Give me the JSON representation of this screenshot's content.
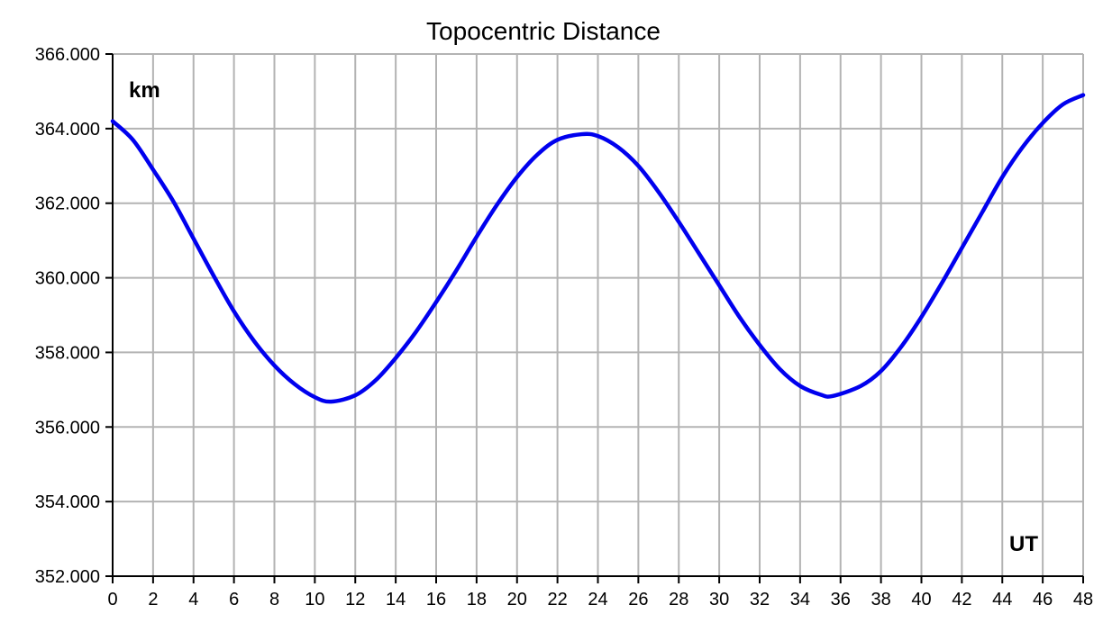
{
  "chart_data": {
    "type": "line",
    "title": "Topocentric Distance",
    "ylabel": "km",
    "xlabel": "UT",
    "xlim": [
      0,
      48
    ],
    "ylim": [
      352000,
      366000
    ],
    "grid": true,
    "x_ticks": [
      0,
      2,
      4,
      6,
      8,
      10,
      12,
      14,
      16,
      18,
      20,
      22,
      24,
      26,
      28,
      30,
      32,
      34,
      36,
      38,
      40,
      42,
      44,
      46,
      48
    ],
    "y_ticks": [
      352000,
      354000,
      356000,
      358000,
      360000,
      362000,
      364000,
      366000
    ],
    "y_tick_labels": [
      "352.000",
      "354.000",
      "356.000",
      "358.000",
      "360.000",
      "362.000",
      "364.000",
      "366.000"
    ],
    "series": [
      {
        "color": "#0000ee",
        "x": [
          0,
          1,
          2,
          3,
          4,
          5,
          6,
          7,
          8,
          9,
          10,
          10.8,
          12,
          13,
          14,
          15,
          16,
          17,
          18,
          19,
          20,
          21,
          22,
          23.2,
          24,
          25,
          26,
          27,
          28,
          29,
          30,
          31,
          32,
          33,
          34,
          35,
          35.6,
          37,
          38,
          39,
          40,
          41,
          42,
          43,
          44,
          45,
          46,
          47,
          48
        ],
        "y": [
          364200,
          363700,
          362900,
          362050,
          361050,
          360050,
          359100,
          358300,
          357650,
          357150,
          356800,
          356680,
          356850,
          357250,
          357850,
          358550,
          359350,
          360200,
          361100,
          361950,
          362700,
          363300,
          363700,
          363850,
          363800,
          363500,
          363000,
          362300,
          361500,
          360650,
          359800,
          358950,
          358200,
          357550,
          357100,
          356870,
          356830,
          357100,
          357500,
          358150,
          358950,
          359850,
          360800,
          361750,
          362700,
          363500,
          364150,
          364650,
          364900
        ]
      }
    ]
  }
}
